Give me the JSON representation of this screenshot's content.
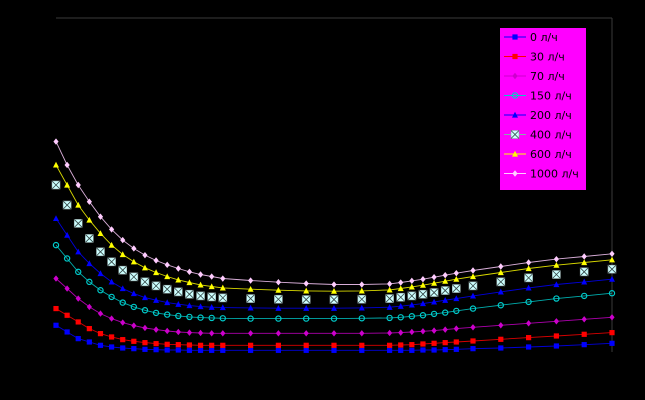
{
  "chart_data": {
    "type": "line",
    "title": "",
    "xlabel": "",
    "ylabel": "",
    "xlim": [
      0,
      1
    ],
    "ylim": [
      0,
      1
    ],
    "grid": false,
    "legend_position": "top-right",
    "background_color": "#000000",
    "legend_background": "#FF00FF",
    "x": [
      0.0,
      0.02,
      0.04,
      0.06,
      0.08,
      0.1,
      0.12,
      0.14,
      0.16,
      0.18,
      0.2,
      0.22,
      0.24,
      0.26,
      0.28,
      0.3,
      0.35,
      0.4,
      0.45,
      0.5,
      0.55,
      0.6,
      0.62,
      0.64,
      0.66,
      0.68,
      0.7,
      0.72,
      0.75,
      0.8,
      0.85,
      0.9,
      0.95,
      1.0
    ],
    "series": [
      {
        "name": "0 л/ч",
        "color": "#0000FF",
        "marker": "square",
        "values": [
          0.08,
          0.06,
          0.04,
          0.03,
          0.02,
          0.015,
          0.012,
          0.01,
          0.008,
          0.007,
          0.006,
          0.006,
          0.005,
          0.005,
          0.005,
          0.005,
          0.005,
          0.005,
          0.005,
          0.005,
          0.005,
          0.005,
          0.005,
          0.005,
          0.006,
          0.006,
          0.007,
          0.008,
          0.01,
          0.012,
          0.015,
          0.018,
          0.022,
          0.026
        ]
      },
      {
        "name": "30 л/ч",
        "color": "#FF0000",
        "marker": "square",
        "values": [
          0.13,
          0.11,
          0.09,
          0.07,
          0.055,
          0.045,
          0.037,
          0.032,
          0.028,
          0.025,
          0.023,
          0.022,
          0.021,
          0.02,
          0.02,
          0.02,
          0.02,
          0.02,
          0.02,
          0.02,
          0.02,
          0.02,
          0.021,
          0.022,
          0.024,
          0.026,
          0.028,
          0.03,
          0.033,
          0.038,
          0.043,
          0.048,
          0.053,
          0.058
        ]
      },
      {
        "name": "70 л/ч",
        "color": "#CC00CC",
        "marker": "diamond",
        "values": [
          0.22,
          0.19,
          0.16,
          0.135,
          0.115,
          0.1,
          0.088,
          0.079,
          0.072,
          0.067,
          0.063,
          0.06,
          0.058,
          0.057,
          0.056,
          0.056,
          0.056,
          0.056,
          0.056,
          0.056,
          0.056,
          0.057,
          0.058,
          0.06,
          0.062,
          0.064,
          0.067,
          0.07,
          0.074,
          0.08,
          0.086,
          0.092,
          0.098,
          0.104
        ]
      },
      {
        "name": "150 л/ч",
        "color": "#00CCCC",
        "marker": "circle",
        "values": [
          0.32,
          0.28,
          0.24,
          0.21,
          0.185,
          0.165,
          0.148,
          0.135,
          0.125,
          0.117,
          0.112,
          0.108,
          0.105,
          0.103,
          0.102,
          0.101,
          0.1,
          0.1,
          0.1,
          0.1,
          0.101,
          0.102,
          0.104,
          0.107,
          0.11,
          0.114,
          0.118,
          0.123,
          0.13,
          0.14,
          0.15,
          0.16,
          0.168,
          0.176
        ]
      },
      {
        "name": "200 л/ч",
        "color": "#0000FF",
        "marker": "triangle",
        "values": [
          0.4,
          0.35,
          0.3,
          0.265,
          0.235,
          0.21,
          0.19,
          0.175,
          0.163,
          0.155,
          0.148,
          0.143,
          0.139,
          0.136,
          0.134,
          0.133,
          0.132,
          0.131,
          0.131,
          0.131,
          0.132,
          0.134,
          0.137,
          0.141,
          0.145,
          0.15,
          0.155,
          0.16,
          0.168,
          0.18,
          0.192,
          0.202,
          0.21,
          0.218
        ]
      },
      {
        "name": "400 л/ч",
        "color": "#CCFFFF",
        "marker": "cross-square",
        "values": [
          0.5,
          0.44,
          0.385,
          0.34,
          0.3,
          0.27,
          0.245,
          0.225,
          0.21,
          0.198,
          0.188,
          0.18,
          0.173,
          0.168,
          0.165,
          0.162,
          0.16,
          0.158,
          0.157,
          0.157,
          0.158,
          0.16,
          0.164,
          0.168,
          0.173,
          0.178,
          0.184,
          0.19,
          0.198,
          0.21,
          0.222,
          0.232,
          0.24,
          0.248
        ]
      },
      {
        "name": "600 л/ч",
        "color": "#FFFF00",
        "marker": "triangle",
        "values": [
          0.56,
          0.5,
          0.44,
          0.395,
          0.355,
          0.32,
          0.292,
          0.27,
          0.252,
          0.238,
          0.226,
          0.216,
          0.208,
          0.201,
          0.196,
          0.192,
          0.188,
          0.185,
          0.183,
          0.182,
          0.183,
          0.186,
          0.19,
          0.195,
          0.2,
          0.206,
          0.212,
          0.218,
          0.226,
          0.238,
          0.25,
          0.26,
          0.268,
          0.276
        ]
      },
      {
        "name": "1000 л/ч",
        "color": "#FFCCFF",
        "marker": "diamond",
        "values": [
          0.63,
          0.56,
          0.5,
          0.45,
          0.405,
          0.367,
          0.335,
          0.31,
          0.29,
          0.274,
          0.261,
          0.25,
          0.24,
          0.232,
          0.226,
          0.22,
          0.214,
          0.209,
          0.205,
          0.202,
          0.202,
          0.204,
          0.208,
          0.213,
          0.218,
          0.224,
          0.23,
          0.236,
          0.244,
          0.256,
          0.268,
          0.278,
          0.286,
          0.294
        ]
      }
    ]
  }
}
